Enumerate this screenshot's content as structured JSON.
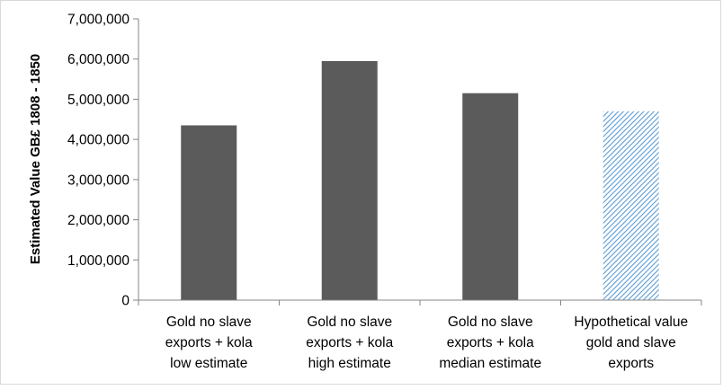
{
  "chart_data": {
    "type": "bar",
    "categories": [
      [
        "Gold no slave",
        "exports + kola",
        "low estimate"
      ],
      [
        "Gold no slave",
        "exports + kola",
        "high estimate"
      ],
      [
        "Gold no slave",
        "exports + kola",
        "median estimate"
      ],
      [
        "Hypothetical value",
        "gold and slave",
        "exports"
      ]
    ],
    "values": [
      4350000,
      5950000,
      5150000,
      4700000
    ],
    "bar_styles": [
      "solid",
      "solid",
      "solid",
      "hatched"
    ],
    "ylabel": "Estimated Value GB£ 1808 - 1850",
    "xlabel": "",
    "title": "",
    "ylim": [
      0,
      7000000
    ],
    "yticks": [
      0,
      1000000,
      2000000,
      3000000,
      4000000,
      5000000,
      6000000,
      7000000
    ],
    "ytick_labels": [
      "0",
      "1,000,000",
      "2,000,000",
      "3,000,000",
      "4,000,000",
      "5,000,000",
      "6,000,000",
      "7,000,000"
    ],
    "grid": false,
    "legend": "none",
    "colors": {
      "bar": "#5b5b5b",
      "hatch": "#5b9bd5",
      "axis": "#868686"
    }
  }
}
